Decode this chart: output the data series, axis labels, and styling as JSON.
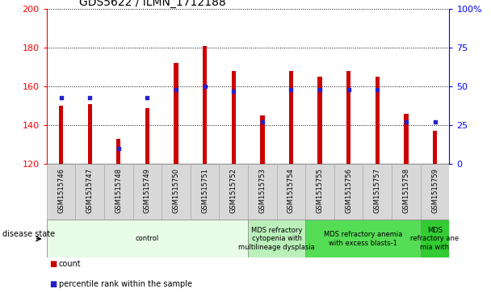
{
  "title": "GDS5622 / ILMN_1712188",
  "samples": [
    "GSM1515746",
    "GSM1515747",
    "GSM1515748",
    "GSM1515749",
    "GSM1515750",
    "GSM1515751",
    "GSM1515752",
    "GSM1515753",
    "GSM1515754",
    "GSM1515755",
    "GSM1515756",
    "GSM1515757",
    "GSM1515758",
    "GSM1515759"
  ],
  "counts": [
    150,
    151,
    133,
    149,
    172,
    181,
    168,
    145,
    168,
    165,
    168,
    165,
    146,
    137
  ],
  "percentile_ranks": [
    43,
    43,
    10,
    43,
    48,
    50,
    47,
    27,
    48,
    48,
    48,
    48,
    27,
    27
  ],
  "ylim_left": [
    120,
    200
  ],
  "ylim_right": [
    0,
    100
  ],
  "bar_color": "#cc0000",
  "dot_color": "#2222cc",
  "bar_bottom": 120,
  "bar_width": 0.15,
  "disease_groups": [
    {
      "label": "control",
      "start": 0,
      "end": 7,
      "color": "#e8fce8"
    },
    {
      "label": "MDS refractory\ncytopenia with\nmultilineage dysplasia",
      "start": 7,
      "end": 9,
      "color": "#bbf0bb"
    },
    {
      "label": "MDS refractory anemia\nwith excess blasts-1",
      "start": 9,
      "end": 13,
      "color": "#55dd55"
    },
    {
      "label": "MDS\nrefractory ane\nmia with",
      "start": 13,
      "end": 14,
      "color": "#33cc33"
    }
  ],
  "legend_count_label": "count",
  "legend_pct_label": "percentile rank within the sample",
  "right_yticks": [
    0,
    25,
    50,
    75,
    100
  ],
  "right_yticklabels": [
    "0",
    "25",
    "50",
    "75",
    "100%"
  ],
  "left_yticks": [
    120,
    140,
    160,
    180,
    200
  ],
  "disease_state_label": "disease state",
  "title_fontsize": 10,
  "tick_fontsize": 8,
  "sample_fontsize": 6,
  "disease_fontsize": 6
}
